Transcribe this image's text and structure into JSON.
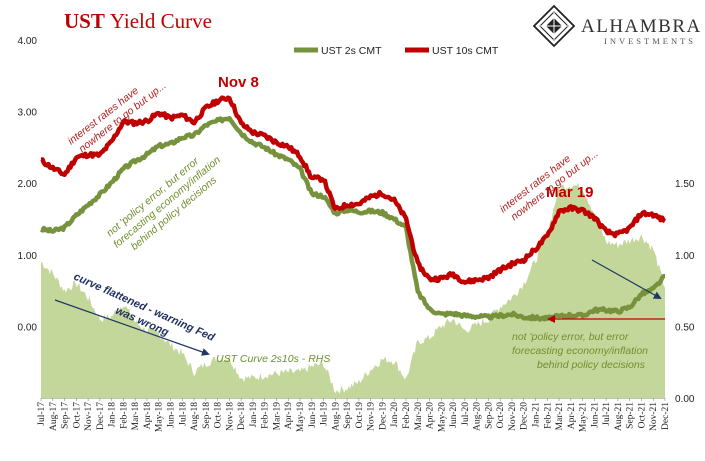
{
  "title_part1": "UST",
  "title_part2": "Yield Curve",
  "brand": {
    "name": "ALHAMBRA",
    "sub": "INVESTMENTS"
  },
  "legend": [
    "UST 2s CMT",
    "UST 10s CMT"
  ],
  "annotations": {
    "nov8": "Nov 8",
    "mar19": "Mar 19",
    "left_red": [
      "interest rates have",
      "nowhere to go but up..."
    ],
    "right_red": [
      "interest rates have",
      "nowhere to go but up..."
    ],
    "left_green": [
      "not 'policy error, but error",
      "forecasting economy/inflation",
      "behind policy decisions"
    ],
    "right_green": [
      "not 'policy error, but error",
      "forecasting economy/inflation",
      "behind policy decisions"
    ],
    "curve_navy": [
      "curve flattened - warning Fed",
      "was wrong"
    ],
    "curve_label": "UST Curve 2s10s - RHS"
  },
  "colors": {
    "us10": "#c00000",
    "us2": "#76923c",
    "curve": "#c4d79b",
    "arrow": "#1f3864",
    "flat_line": "#c00000"
  },
  "chart_data": {
    "type": "line",
    "title": "UST Yield Curve",
    "x_labels": [
      "Jul-17",
      "Aug-17",
      "Sep-17",
      "Oct-17",
      "Nov-17",
      "Dec-17",
      "Jan-18",
      "Feb-18",
      "Mar-18",
      "Apr-18",
      "May-18",
      "Jun-18",
      "Jul-18",
      "Aug-18",
      "Sep-18",
      "Oct-18",
      "Nov-18",
      "Dec-18",
      "Jan-19",
      "Feb-19",
      "Mar-19",
      "Apr-19",
      "May-19",
      "Jun-19",
      "Jul-19",
      "Aug-19",
      "Sep-19",
      "Oct-19",
      "Nov-19",
      "Dec-19",
      "Jan-20",
      "Feb-20",
      "Mar-20",
      "Apr-20",
      "May-20",
      "Jun-20",
      "Jul-20",
      "Aug-20",
      "Sep-20",
      "Oct-20",
      "Nov-20",
      "Dec-20",
      "Jan-21",
      "Feb-21",
      "Mar-21",
      "Apr-21",
      "May-21",
      "Jun-21",
      "Jul-21",
      "Aug-21",
      "Sep-21",
      "Oct-21",
      "Nov-21",
      "Dec-21"
    ],
    "y_left": {
      "ticks": [
        "0.00",
        "1.00",
        "2.00",
        "3.00",
        "4.00"
      ],
      "range": [
        -1.0,
        4.0
      ]
    },
    "y_right": {
      "ticks": [
        "0.00",
        "0.50",
        "1.00",
        "1.50"
      ],
      "range": [
        0.0,
        2.5
      ]
    },
    "series": [
      {
        "name": "UST 10s CMT",
        "axis": "left",
        "values": [
          2.32,
          2.21,
          2.12,
          2.36,
          2.4,
          2.39,
          2.58,
          2.86,
          2.84,
          2.87,
          2.98,
          2.91,
          2.95,
          2.85,
          3.05,
          3.15,
          3.2,
          2.83,
          2.71,
          2.66,
          2.57,
          2.51,
          2.38,
          2.07,
          2.06,
          1.63,
          1.7,
          1.71,
          1.81,
          1.86,
          1.76,
          1.5,
          0.87,
          0.66,
          0.67,
          0.73,
          0.62,
          0.65,
          0.68,
          0.79,
          0.87,
          0.93,
          1.08,
          1.26,
          1.61,
          1.65,
          1.62,
          1.52,
          1.32,
          1.28,
          1.37,
          1.58,
          1.56,
          1.47
        ]
      },
      {
        "name": "UST 2s CMT",
        "axis": "left",
        "values": [
          1.36,
          1.33,
          1.38,
          1.55,
          1.7,
          1.84,
          2.01,
          2.2,
          2.31,
          2.4,
          2.52,
          2.55,
          2.64,
          2.67,
          2.81,
          2.87,
          2.92,
          2.7,
          2.57,
          2.5,
          2.4,
          2.33,
          2.2,
          1.85,
          1.82,
          1.58,
          1.63,
          1.6,
          1.61,
          1.59,
          1.5,
          1.38,
          0.48,
          0.24,
          0.17,
          0.18,
          0.15,
          0.14,
          0.13,
          0.15,
          0.17,
          0.13,
          0.12,
          0.11,
          0.14,
          0.16,
          0.15,
          0.23,
          0.23,
          0.21,
          0.27,
          0.45,
          0.52,
          0.7
        ]
      },
      {
        "name": "UST Curve 2s10s - RHS",
        "axis": "right",
        "type": "area",
        "values": [
          0.95,
          0.87,
          0.75,
          0.8,
          0.7,
          0.55,
          0.57,
          0.66,
          0.53,
          0.47,
          0.45,
          0.37,
          0.31,
          0.18,
          0.24,
          0.28,
          0.28,
          0.14,
          0.14,
          0.16,
          0.17,
          0.18,
          0.18,
          0.22,
          0.24,
          0.05,
          0.07,
          0.11,
          0.2,
          0.27,
          0.26,
          0.13,
          0.39,
          0.42,
          0.5,
          0.55,
          0.47,
          0.51,
          0.55,
          0.64,
          0.7,
          0.8,
          0.96,
          1.15,
          1.47,
          1.49,
          1.47,
          1.29,
          1.09,
          1.07,
          1.1,
          1.13,
          1.04,
          0.77
        ]
      }
    ]
  }
}
